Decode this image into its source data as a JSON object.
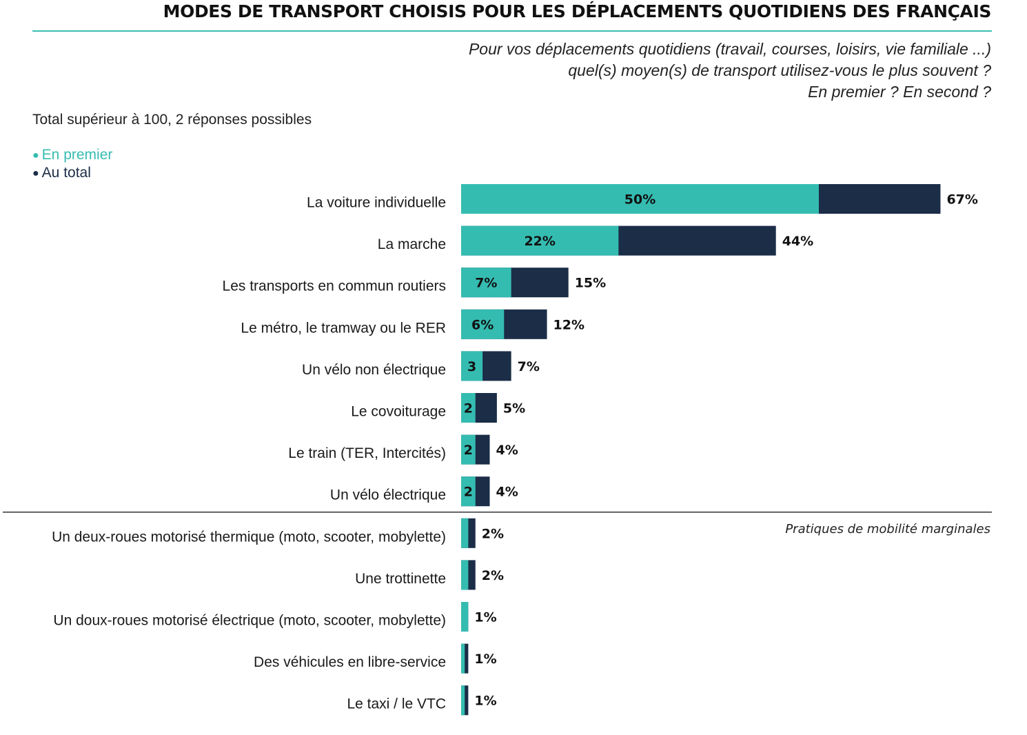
{
  "chart_data": {
    "type": "bar",
    "orientation": "horizontal",
    "stacked_overlay": true,
    "title": "MODES DE TRANSPORT CHOISIS POUR LES DÉPLACEMENTS QUOTIDIENS DES FRANÇAIS",
    "question": [
      "Pour vos déplacements quotidiens (travail, courses, loisirs, vie familiale ...)",
      "quel(s) moyen(s) de transport utilisez-vous le plus souvent ?",
      "En premier ? En second ?"
    ],
    "note": "Total supérieur à 100, 2 réponses possibles",
    "legend": {
      "placement": "top-left",
      "items": [
        {
          "label": "En premier",
          "color": "#35bcb1"
        },
        {
          "label": "Au total",
          "color": "#1b2d47"
        }
      ]
    },
    "categories": [
      "La voiture individuelle",
      "La marche",
      "Les transports en commun routiers",
      "Le métro, le tramway ou le RER",
      "Un vélo non électrique",
      "Le covoiturage",
      "Le train (TER, Intercités)",
      "Un vélo électrique",
      "Un deux-roues motorisé thermique (moto, scooter, mobylette)",
      "Une trottinette",
      "Un doux-roues motorisé électrique (moto, scooter, mobylette)",
      "Des véhicules en libre-service",
      "Le taxi / le VTC"
    ],
    "series": [
      {
        "name": "En premier",
        "color": "#35bcb1",
        "values": [
          50,
          22,
          7,
          6,
          3,
          2,
          2,
          2,
          1,
          1,
          1,
          0.5,
          0.5
        ],
        "labels": [
          "50%",
          "22%",
          "7%",
          "6%",
          "3",
          "2",
          "2",
          "2",
          "",
          "",
          "",
          "",
          ""
        ]
      },
      {
        "name": "Au total",
        "color": "#1b2d47",
        "values": [
          67,
          44,
          15,
          12,
          7,
          5,
          4,
          4,
          2,
          2,
          1,
          1,
          1
        ],
        "labels": [
          "67%",
          "44%",
          "15%",
          "12%",
          "7%",
          "5%",
          "4%",
          "4%",
          "2%",
          "2%",
          "1%",
          "1%",
          "1%"
        ]
      }
    ],
    "separator_after_index": 7,
    "separator_label": "Pratiques de mobilité marginales",
    "xlim": [
      0,
      67
    ],
    "grid": false
  }
}
